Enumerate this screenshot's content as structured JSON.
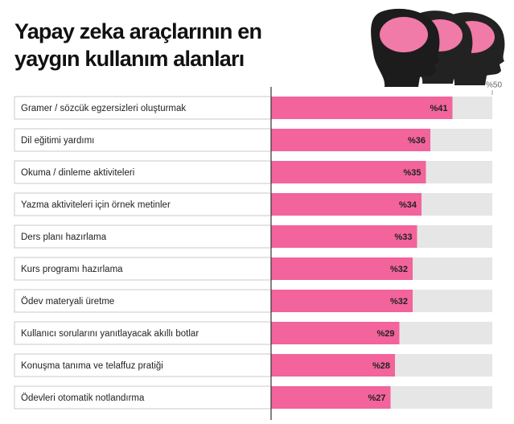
{
  "chart_data": {
    "type": "barh",
    "title": "Yapay zeka araçlarının en yaygın kullanım alanları",
    "categories": [
      "Gramer / sözcük egzersizleri oluşturmak",
      "Dil eğitimi yardımı",
      "Okuma / dinleme aktiviteleri",
      "Yazma aktiviteleri için örnek metinler",
      "Ders planı hazırlama",
      "Kurs programı hazırlama",
      "Ödev materyali üretme",
      "Kullanıcı sorularını yanıtlayacak akıllı botlar",
      "Konuşma tanıma ve telaffuz pratiği",
      "Ödevleri otomatik notlandırma"
    ],
    "values": [
      41,
      36,
      35,
      34,
      33,
      32,
      32,
      29,
      28,
      27
    ],
    "value_labels": [
      "%41",
      "%36",
      "%35",
      "%34",
      "%33",
      "%32",
      "%32",
      "%29",
      "%28",
      "%27"
    ],
    "color": "#f2649b",
    "xlim": [
      0,
      50
    ],
    "xticks": [
      {
        "value": 50,
        "label": "%50"
      }
    ]
  }
}
